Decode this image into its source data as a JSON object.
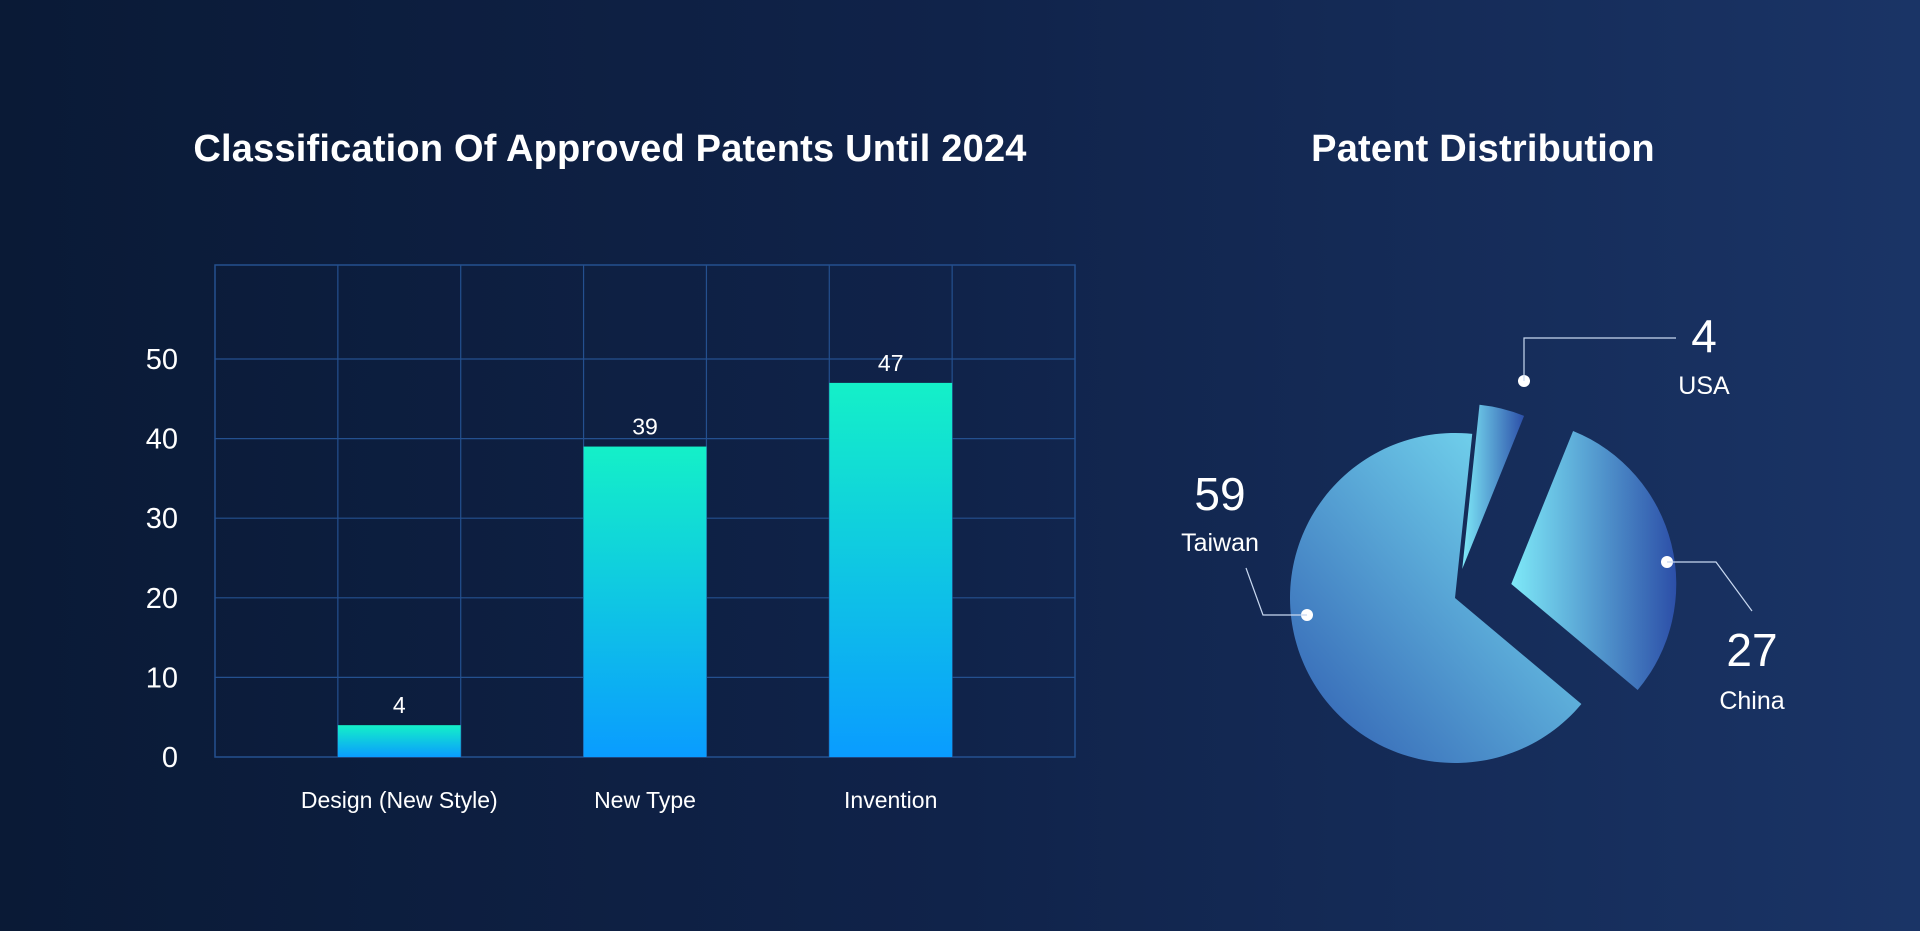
{
  "chart_data": [
    {
      "type": "bar",
      "title": "Classification Of Approved Patents Until 2024",
      "categories": [
        "Design (New Style)",
        "New Type",
        "Invention"
      ],
      "values": [
        4,
        39,
        47
      ],
      "ylim": [
        0,
        60
      ],
      "yticks": [
        0,
        10,
        20,
        30,
        40,
        50
      ],
      "xlabel": "",
      "ylabel": "",
      "grid": true,
      "colors": {
        "bar_top": "#14f0c8",
        "bar_bottom": "#0a9cff",
        "grid": "#24508f"
      }
    },
    {
      "type": "pie",
      "title": "Patent Distribution",
      "slices": [
        {
          "label": "Taiwan",
          "value": 59
        },
        {
          "label": "USA",
          "value": 4
        },
        {
          "label": "China",
          "value": 27
        }
      ],
      "exploded": true,
      "colors": {
        "light": "#7ee9f8",
        "dark": "#2c4fa8"
      }
    }
  ]
}
